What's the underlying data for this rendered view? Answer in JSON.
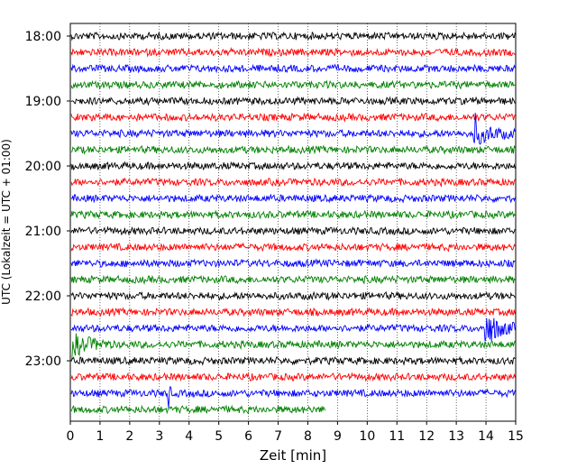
{
  "chart_data": {
    "type": "line",
    "xlabel": "Zeit  [min]",
    "ylabel": "UTC (Lokalzeit = UTC + 01:00)",
    "xlim": [
      0,
      15
    ],
    "x_ticks": [
      0,
      1,
      2,
      3,
      4,
      5,
      6,
      7,
      8,
      9,
      10,
      11,
      12,
      13,
      14,
      15
    ],
    "y_ticks": [
      {
        "label": "18:00",
        "hour": 18
      },
      {
        "label": "19:00",
        "hour": 19
      },
      {
        "label": "20:00",
        "hour": 20
      },
      {
        "label": "21:00",
        "hour": 21
      },
      {
        "label": "22:00",
        "hour": 22
      },
      {
        "label": "23:00",
        "hour": 23
      }
    ],
    "grid": "vertical dotted",
    "trace_interval_min": 15,
    "color_cycle": [
      "#000000",
      "#ff0000",
      "#0000ff",
      "#008000"
    ],
    "traces": [
      {
        "start": "18:00",
        "color": "#000000",
        "end_min": 15
      },
      {
        "start": "18:15",
        "color": "#ff0000",
        "end_min": 15
      },
      {
        "start": "18:30",
        "color": "#0000ff",
        "end_min": 15
      },
      {
        "start": "18:45",
        "color": "#008000",
        "end_min": 15
      },
      {
        "start": "19:00",
        "color": "#000000",
        "end_min": 15
      },
      {
        "start": "19:15",
        "color": "#ff0000",
        "end_min": 15
      },
      {
        "start": "19:30",
        "color": "#0000ff",
        "end_min": 15,
        "events": [
          {
            "min": 13.6,
            "amp": 1.6,
            "dur": 1.4
          }
        ]
      },
      {
        "start": "19:45",
        "color": "#008000",
        "end_min": 15
      },
      {
        "start": "20:00",
        "color": "#000000",
        "end_min": 15
      },
      {
        "start": "20:15",
        "color": "#ff0000",
        "end_min": 15
      },
      {
        "start": "20:30",
        "color": "#0000ff",
        "end_min": 15
      },
      {
        "start": "20:45",
        "color": "#008000",
        "end_min": 15
      },
      {
        "start": "21:00",
        "color": "#000000",
        "end_min": 15
      },
      {
        "start": "21:15",
        "color": "#ff0000",
        "end_min": 15
      },
      {
        "start": "21:30",
        "color": "#0000ff",
        "end_min": 15
      },
      {
        "start": "21:45",
        "color": "#008000",
        "end_min": 15
      },
      {
        "start": "22:00",
        "color": "#000000",
        "end_min": 15
      },
      {
        "start": "22:15",
        "color": "#ff0000",
        "end_min": 15
      },
      {
        "start": "22:30",
        "color": "#0000ff",
        "end_min": 15,
        "events": [
          {
            "min": 14.0,
            "amp": 2.6,
            "dur": 1.0
          }
        ]
      },
      {
        "start": "22:45",
        "color": "#008000",
        "end_min": 15,
        "events": [
          {
            "min": 0.0,
            "amp": 1.8,
            "dur": 1.4
          }
        ]
      },
      {
        "start": "23:00",
        "color": "#000000",
        "end_min": 15
      },
      {
        "start": "23:15",
        "color": "#ff0000",
        "end_min": 15
      },
      {
        "start": "23:30",
        "color": "#0000ff",
        "end_min": 15,
        "events": [
          {
            "min": 3.3,
            "amp": 1.5,
            "dur": 0.15
          }
        ]
      },
      {
        "start": "23:45",
        "color": "#008000",
        "end_min": 8.6
      }
    ]
  }
}
